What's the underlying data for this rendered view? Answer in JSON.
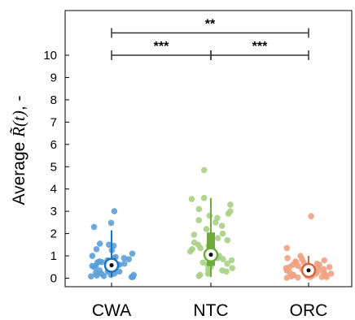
{
  "chart_data": {
    "type": "box-strip",
    "title": "",
    "xlabel": "",
    "ylabel": {
      "prefix": "Average ",
      "math": "R̃(t)",
      "suffix": ", -"
    },
    "ylim": [
      -0.3,
      12.0
    ],
    "yticks": [
      "0",
      "1",
      "2",
      "3",
      "4",
      "5",
      "6",
      "7",
      "8",
      "9",
      "10"
    ],
    "grid": false,
    "categories": [
      "CWA",
      "NTC",
      "ORC"
    ],
    "series": [
      {
        "color": "#5b9fd8",
        "box_color": "#1f74b9",
        "box": {
          "whisker_low": 0.05,
          "q1": 0.28,
          "median": 0.58,
          "q3": 0.9,
          "whisker_high": 2.15
        },
        "points": [
          2.48,
          3.0,
          2.3,
          1.55,
          1.5,
          1.25,
          1.0,
          0.85,
          0.95,
          0.8,
          0.72,
          0.65,
          0.6,
          0.55,
          0.45,
          0.35,
          0.3,
          0.25,
          0.2,
          0.15,
          0.12,
          0.08,
          0.05,
          0.05,
          0.5,
          0.4,
          1.1,
          0.7,
          0.3,
          0.9,
          0.6,
          0.2,
          1.3,
          0.15,
          0.45,
          0.75,
          1.45,
          0.1,
          0.55,
          0.9
        ]
      },
      {
        "color": "#a9cf84",
        "box_color": "#6fab3a",
        "box": {
          "whisker_low": 0.05,
          "q1": 0.55,
          "median": 1.05,
          "q3": 2.05,
          "whisker_high": 3.6
        },
        "points": [
          4.85,
          3.6,
          3.55,
          3.3,
          3.1,
          2.9,
          2.8,
          2.6,
          2.5,
          2.2,
          2.0,
          1.8,
          1.6,
          1.5,
          1.45,
          1.3,
          1.2,
          1.1,
          1.0,
          0.9,
          0.8,
          0.7,
          0.6,
          0.5,
          0.4,
          0.3,
          0.25,
          0.2,
          0.15,
          0.1,
          2.35,
          1.95,
          1.35,
          0.85,
          0.65,
          0.45,
          3.0,
          1.7,
          0.35,
          2.7
        ]
      },
      {
        "color": "#f0a181",
        "box_color": "#d8643c",
        "box": {
          "whisker_low": 0.02,
          "q1": 0.1,
          "median": 0.35,
          "q3": 0.6,
          "whisker_high": 1.0
        },
        "points": [
          2.78,
          1.35,
          1.0,
          0.85,
          0.75,
          0.7,
          0.65,
          0.6,
          0.55,
          0.5,
          0.45,
          0.4,
          0.35,
          0.3,
          0.25,
          0.2,
          0.18,
          0.15,
          0.12,
          0.1,
          0.08,
          0.05,
          0.05,
          0.03,
          0.02,
          0.6,
          0.45,
          0.3,
          0.2,
          0.1,
          0.7,
          0.25,
          0.15,
          0.9,
          0.5,
          0.35,
          0.05,
          0.4,
          0.8,
          0.12
        ]
      }
    ],
    "significance": [
      {
        "from": 0,
        "to": 2,
        "label": "**",
        "y": 11.0
      },
      {
        "from": 0,
        "to": 1,
        "label": "***",
        "y": 10.0
      },
      {
        "from": 1,
        "to": 2,
        "label": "***",
        "y": 10.0
      }
    ]
  }
}
